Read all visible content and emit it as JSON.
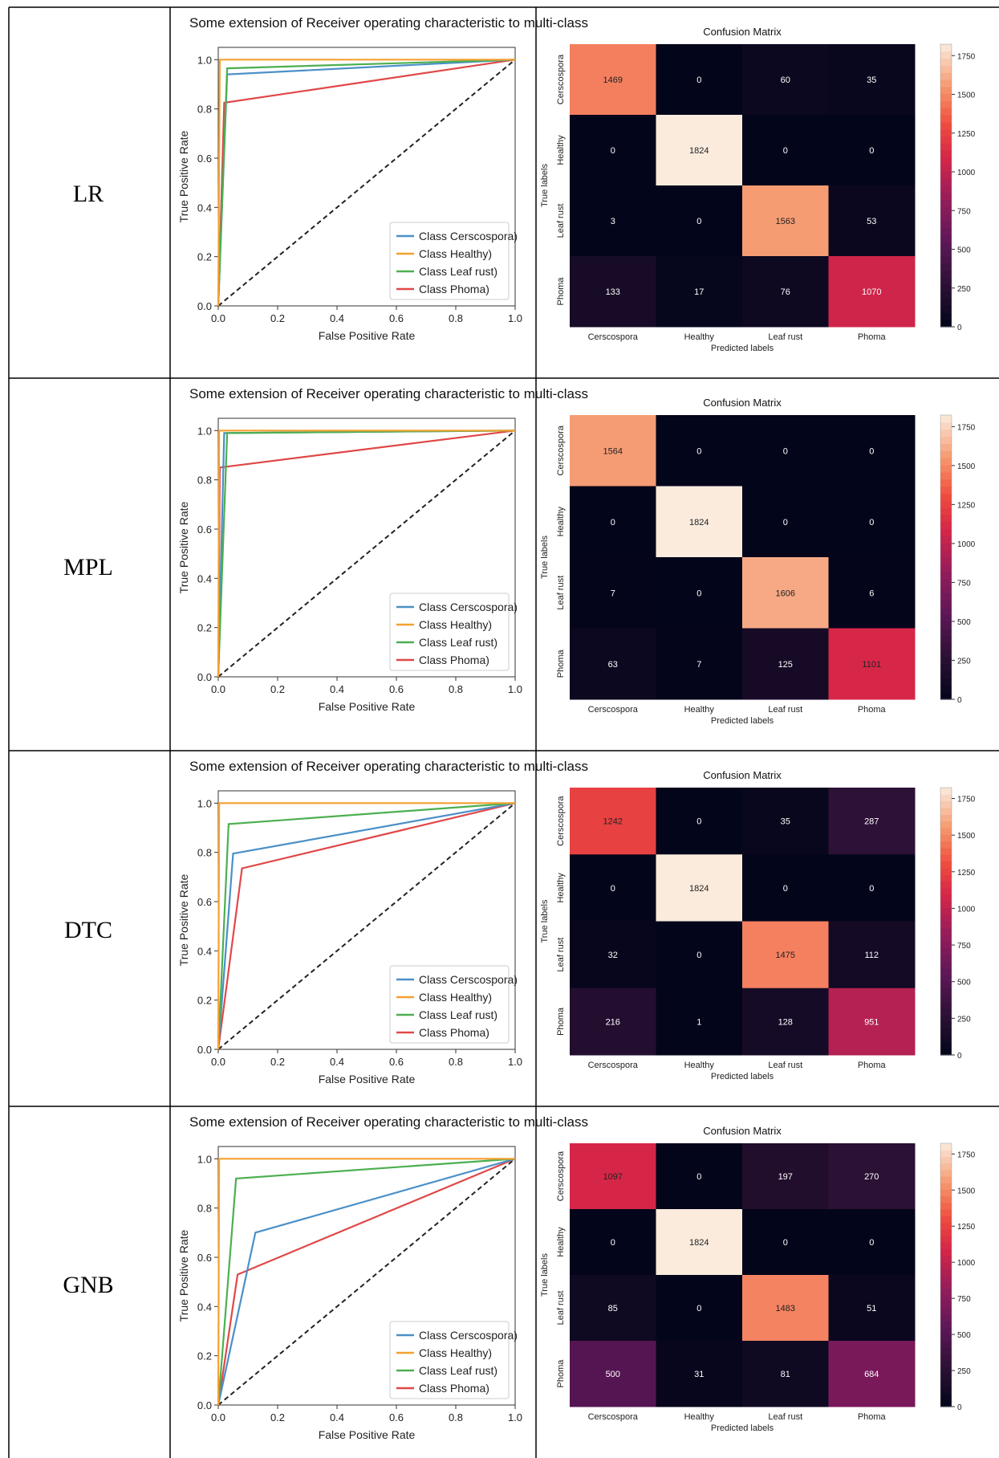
{
  "rows": [
    {
      "model": "LR"
    },
    {
      "model": "MPL"
    },
    {
      "model": "DTC"
    },
    {
      "model": "GNB"
    }
  ],
  "colors": {
    "Cerscospora": "#4a90c8",
    "Healthy": "#f5a030",
    "Leaf rust": "#4caf50",
    "Phoma": "#e04848",
    "diagonal": "#222222"
  },
  "chart_data": [
    {
      "type": "line",
      "title": "Some extension of Receiver operating characteristic to multi-class",
      "xlabel": "False Positive Rate",
      "ylabel": "True Positive Rate",
      "xlim": [
        0,
        1
      ],
      "ylim": [
        0,
        1.05
      ],
      "xticks": [
        "0.0",
        "0.2",
        "0.4",
        "0.6",
        "0.8",
        "1.0"
      ],
      "yticks": [
        "0.0",
        "0.2",
        "0.4",
        "0.6",
        "0.8",
        "1.0"
      ],
      "legend_position": "bottom-right",
      "series": [
        {
          "name": "Class Cerscospora)",
          "x": [
            0,
            0.03,
            1
          ],
          "y": [
            0,
            0.94,
            1
          ]
        },
        {
          "name": "Class Healthy)",
          "x": [
            0,
            0.005,
            1
          ],
          "y": [
            0,
            1.0,
            1
          ]
        },
        {
          "name": "Class Leaf rust)",
          "x": [
            0,
            0.03,
            1
          ],
          "y": [
            0,
            0.965,
            1
          ]
        },
        {
          "name": "Class Phoma)",
          "x": [
            0,
            0.02,
            1
          ],
          "y": [
            0,
            0.825,
            1
          ]
        }
      ]
    },
    {
      "type": "heatmap",
      "title": "Confusion Matrix",
      "xlabel": "Predicted labels",
      "ylabel": "True labels",
      "categories": [
        "Cerscospora",
        "Healthy",
        "Leaf rust",
        "Phoma"
      ],
      "values": [
        [
          1469,
          0,
          60,
          35
        ],
        [
          0,
          1824,
          0,
          0
        ],
        [
          3,
          0,
          1563,
          53
        ],
        [
          133,
          17,
          76,
          1070
        ]
      ],
      "colorbar_ticks": [
        "0",
        "250",
        "500",
        "750",
        "1000",
        "1250",
        "1500",
        "1750"
      ],
      "vmax": 1824
    },
    {
      "type": "line",
      "title": "Some extension of Receiver operating characteristic to multi-class",
      "xlabel": "False Positive Rate",
      "ylabel": "True Positive Rate",
      "xlim": [
        0,
        1
      ],
      "ylim": [
        0,
        1.05
      ],
      "xticks": [
        "0.0",
        "0.2",
        "0.4",
        "0.6",
        "0.8",
        "1.0"
      ],
      "yticks": [
        "0.0",
        "0.2",
        "0.4",
        "0.6",
        "0.8",
        "1.0"
      ],
      "legend_position": "bottom-right",
      "series": [
        {
          "name": "Class Cerscospora)",
          "x": [
            0,
            0.02,
            1
          ],
          "y": [
            0,
            0.99,
            1
          ]
        },
        {
          "name": "Class Healthy)",
          "x": [
            0,
            0.003,
            1
          ],
          "y": [
            0,
            1.0,
            1
          ]
        },
        {
          "name": "Class Leaf rust)",
          "x": [
            0,
            0.03,
            1
          ],
          "y": [
            0,
            0.99,
            1
          ]
        },
        {
          "name": "Class Phoma)",
          "x": [
            0,
            0.005,
            1
          ],
          "y": [
            0,
            0.85,
            1
          ]
        }
      ]
    },
    {
      "type": "heatmap",
      "title": "Confusion Matrix",
      "xlabel": "Predicted labels",
      "ylabel": "True labels",
      "categories": [
        "Cerscospora",
        "Healthy",
        "Leaf rust",
        "Phoma"
      ],
      "values": [
        [
          1564,
          0,
          0,
          0
        ],
        [
          0,
          1824,
          0,
          0
        ],
        [
          7,
          0,
          1606,
          6
        ],
        [
          63,
          7,
          125,
          1101
        ]
      ],
      "colorbar_ticks": [
        "0",
        "250",
        "500",
        "750",
        "1000",
        "1250",
        "1500",
        "1750"
      ],
      "vmax": 1824
    },
    {
      "type": "line",
      "title": "Some extension of Receiver operating characteristic to multi-class",
      "xlabel": "False Positive Rate",
      "ylabel": "True Positive Rate",
      "xlim": [
        0,
        1
      ],
      "ylim": [
        0,
        1.05
      ],
      "xticks": [
        "0.0",
        "0.2",
        "0.4",
        "0.6",
        "0.8",
        "1.0"
      ],
      "yticks": [
        "0.0",
        "0.2",
        "0.4",
        "0.6",
        "0.8",
        "1.0"
      ],
      "legend_position": "bottom-right",
      "series": [
        {
          "name": "Class Cerscospora)",
          "x": [
            0,
            0.05,
            1
          ],
          "y": [
            0,
            0.795,
            1
          ]
        },
        {
          "name": "Class Healthy)",
          "x": [
            0,
            0.003,
            1
          ],
          "y": [
            0,
            1.0,
            1
          ]
        },
        {
          "name": "Class Leaf rust)",
          "x": [
            0,
            0.035,
            1
          ],
          "y": [
            0,
            0.915,
            1
          ]
        },
        {
          "name": "Class Phoma)",
          "x": [
            0,
            0.08,
            1
          ],
          "y": [
            0,
            0.735,
            1
          ]
        }
      ]
    },
    {
      "type": "heatmap",
      "title": "Confusion Matrix",
      "xlabel": "Predicted labels",
      "ylabel": "True labels",
      "categories": [
        "Cerscospora",
        "Healthy",
        "Leaf rust",
        "Phoma"
      ],
      "values": [
        [
          1242,
          0,
          35,
          287
        ],
        [
          0,
          1824,
          0,
          0
        ],
        [
          32,
          0,
          1475,
          112
        ],
        [
          216,
          1,
          128,
          951
        ]
      ],
      "colorbar_ticks": [
        "0",
        "250",
        "500",
        "750",
        "1000",
        "1250",
        "1500",
        "1750"
      ],
      "vmax": 1824
    },
    {
      "type": "line",
      "title": "Some extension of Receiver operating characteristic to multi-class",
      "xlabel": "False Positive Rate",
      "ylabel": "True Positive Rate",
      "xlim": [
        0,
        1
      ],
      "ylim": [
        0,
        1.05
      ],
      "xticks": [
        "0.0",
        "0.2",
        "0.4",
        "0.6",
        "0.8",
        "1.0"
      ],
      "yticks": [
        "0.0",
        "0.2",
        "0.4",
        "0.6",
        "0.8",
        "1.0"
      ],
      "legend_position": "bottom-right",
      "series": [
        {
          "name": "Class Cerscospora)",
          "x": [
            0,
            0.125,
            1
          ],
          "y": [
            0,
            0.7,
            1
          ]
        },
        {
          "name": "Class Healthy)",
          "x": [
            0,
            0.003,
            1
          ],
          "y": [
            0,
            1.0,
            1
          ]
        },
        {
          "name": "Class Leaf rust)",
          "x": [
            0,
            0.06,
            1
          ],
          "y": [
            0,
            0.92,
            1
          ]
        },
        {
          "name": "Class Phoma)",
          "x": [
            0,
            0.065,
            1
          ],
          "y": [
            0,
            0.53,
            1
          ]
        }
      ]
    },
    {
      "type": "heatmap",
      "title": "Confusion Matrix",
      "xlabel": "Predicted labels",
      "ylabel": "True labels",
      "categories": [
        "Cerscospora",
        "Healthy",
        "Leaf rust",
        "Phoma"
      ],
      "values": [
        [
          1097,
          0,
          197,
          270
        ],
        [
          0,
          1824,
          0,
          0
        ],
        [
          85,
          0,
          1483,
          51
        ],
        [
          500,
          31,
          81,
          684
        ]
      ],
      "colorbar_ticks": [
        "0",
        "250",
        "500",
        "750",
        "1000",
        "1250",
        "1500",
        "1750"
      ],
      "vmax": 1824
    }
  ]
}
